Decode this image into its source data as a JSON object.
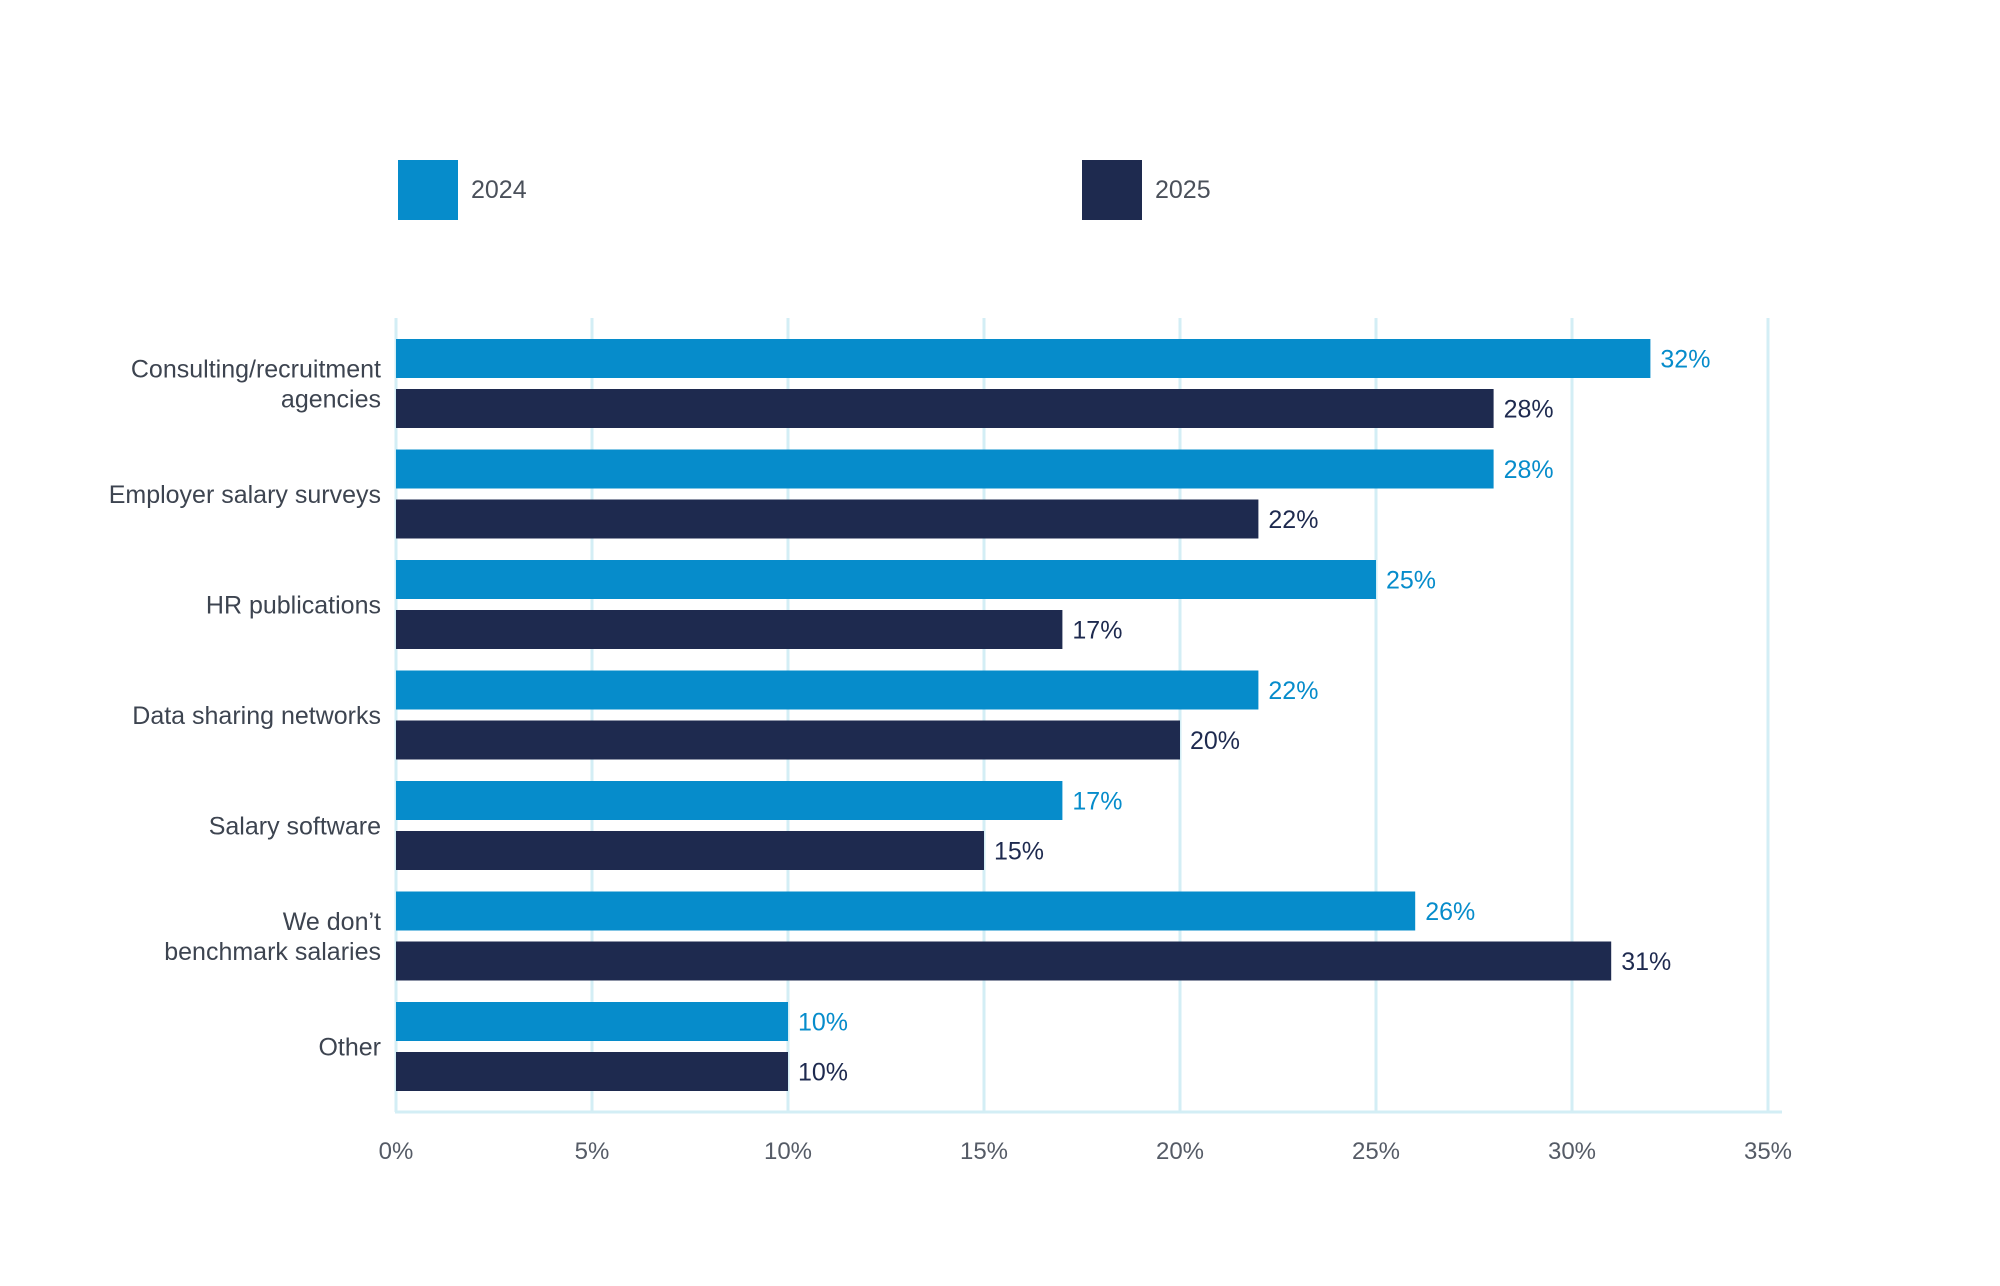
{
  "chart_data": {
    "type": "bar",
    "orientation": "horizontal",
    "categories": [
      [
        "Consulting/recruitment",
        "agencies"
      ],
      [
        "Employer salary surveys"
      ],
      [
        "HR publications"
      ],
      [
        "Data sharing networks"
      ],
      [
        "Salary software"
      ],
      [
        "We don’t",
        "benchmark salaries"
      ],
      [
        "Other"
      ]
    ],
    "series": [
      {
        "name": "2024",
        "color": "#068ccb",
        "values": [
          32,
          28,
          25,
          22,
          17,
          26,
          10
        ],
        "labels": [
          "32%",
          "28%",
          "25%",
          "22%",
          "17%",
          "26%",
          "10%"
        ]
      },
      {
        "name": "2025",
        "color": "#1e2a4f",
        "values": [
          28,
          22,
          17,
          20,
          15,
          31,
          10
        ],
        "labels": [
          "28%",
          "22%",
          "17%",
          "20%",
          "15%",
          "31%",
          "10%"
        ]
      }
    ],
    "xlim": [
      0,
      35
    ],
    "ticks": [
      0,
      5,
      10,
      15,
      20,
      25,
      30,
      35
    ],
    "tick_labels": [
      "0%",
      "5%",
      "10%",
      "15%",
      "20%",
      "25%",
      "30%",
      "35%"
    ],
    "grid": true,
    "grid_color": "#d3eef5",
    "legend_position": "top"
  }
}
